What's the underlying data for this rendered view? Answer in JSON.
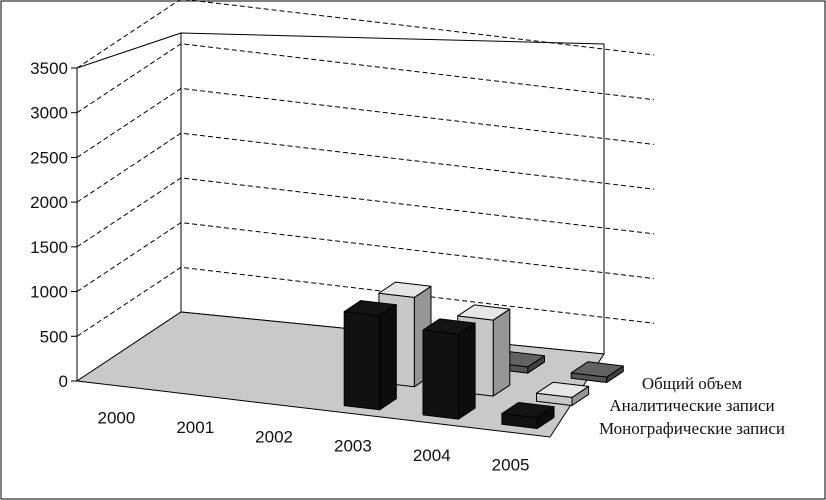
{
  "chart_data": {
    "type": "bar",
    "style": "3d-column",
    "title": "",
    "xlabel": "",
    "ylabel": "",
    "ylim": [
      0,
      3500
    ],
    "yticks": [
      "0",
      "500",
      "1000",
      "1500",
      "2000",
      "2500",
      "3000",
      "3500"
    ],
    "categories": [
      "2000",
      "2001",
      "2002",
      "2003",
      "2004",
      "2005"
    ],
    "series": [
      {
        "name": "Общий объем",
        "color": "#111111",
        "values": [
          0,
          0,
          0,
          1050,
          950,
          120
        ]
      },
      {
        "name": "Аналитические записи",
        "color": "#c8c8c8",
        "values": [
          0,
          0,
          0,
          1000,
          850,
          90
        ]
      },
      {
        "name": "Монографические записи",
        "color": "#555555",
        "values": [
          0,
          0,
          0,
          70,
          70,
          60
        ]
      }
    ],
    "grid": true,
    "floor_color": "#c9c9c9"
  }
}
